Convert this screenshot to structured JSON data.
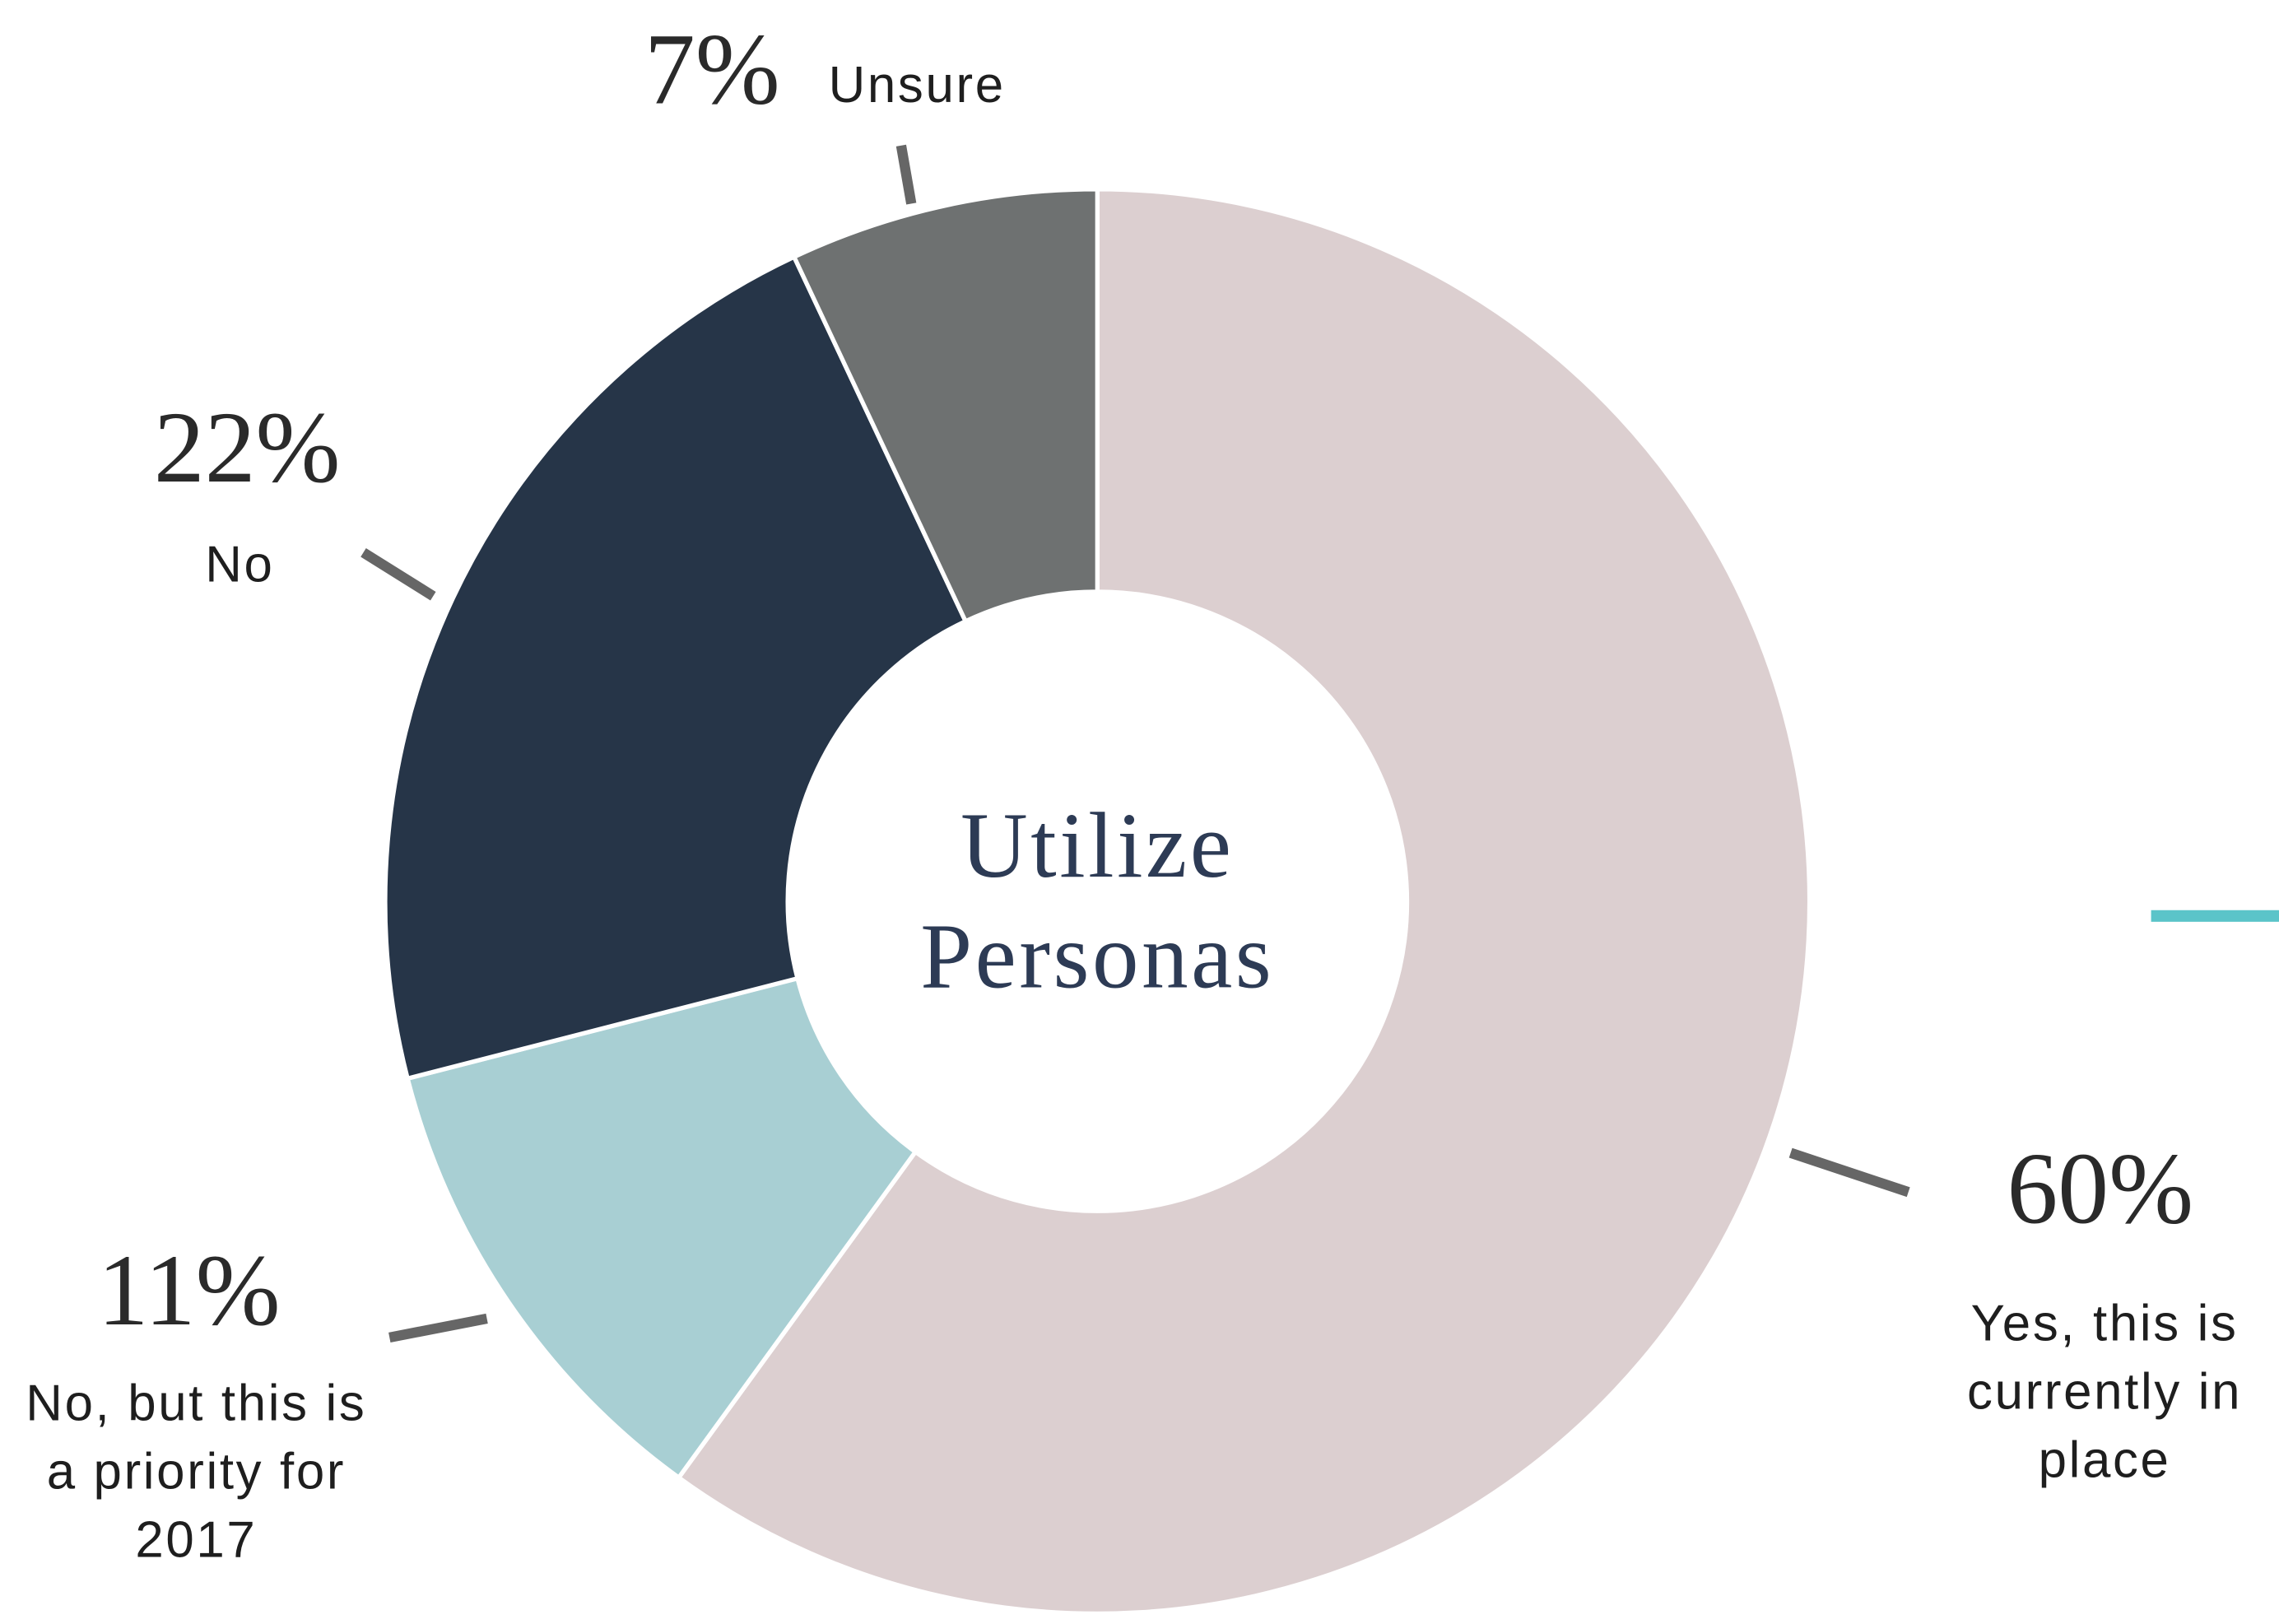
{
  "chart_data": {
    "type": "pie",
    "title": "Utilize Personas",
    "categories": [
      "Yes, this is currently in place",
      "No, but this is a priority for 2017",
      "No",
      "Unsure"
    ],
    "values": [
      60,
      11,
      22,
      7
    ],
    "value_labels": [
      "60%",
      "11%",
      "22%",
      "7%"
    ],
    "colors": [
      "#dccfd0",
      "#a8cfd3",
      "#263548",
      "#6e7171"
    ]
  }
}
